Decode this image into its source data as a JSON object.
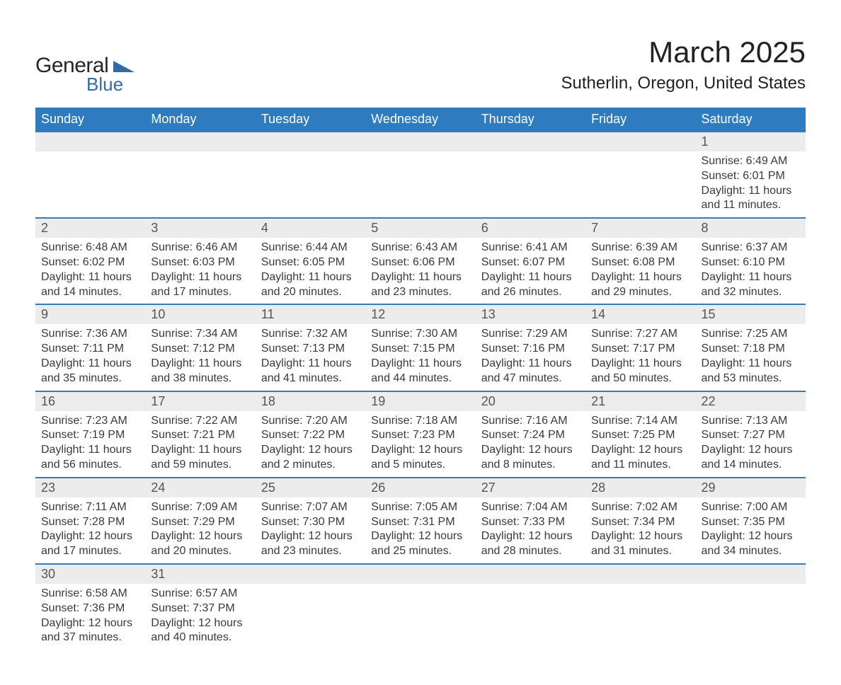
{
  "logo": {
    "text1": "General",
    "text2": "Blue",
    "shape_color": "#2f6da4"
  },
  "title": "March 2025",
  "subtitle": "Sutherlin, Oregon, United States",
  "header_bg": "#2f7bbf",
  "header_fg": "#ffffff",
  "daynum_bg": "#ececec",
  "rule_color": "#3a7ab5",
  "text_color": "#3a3a3a",
  "dow": [
    "Sunday",
    "Monday",
    "Tuesday",
    "Wednesday",
    "Thursday",
    "Friday",
    "Saturday"
  ],
  "weeks": [
    [
      null,
      null,
      null,
      null,
      null,
      null,
      {
        "n": "1",
        "sr": "Sunrise: 6:49 AM",
        "ss": "Sunset: 6:01 PM",
        "d1": "Daylight: 11 hours",
        "d2": "and 11 minutes."
      }
    ],
    [
      {
        "n": "2",
        "sr": "Sunrise: 6:48 AM",
        "ss": "Sunset: 6:02 PM",
        "d1": "Daylight: 11 hours",
        "d2": "and 14 minutes."
      },
      {
        "n": "3",
        "sr": "Sunrise: 6:46 AM",
        "ss": "Sunset: 6:03 PM",
        "d1": "Daylight: 11 hours",
        "d2": "and 17 minutes."
      },
      {
        "n": "4",
        "sr": "Sunrise: 6:44 AM",
        "ss": "Sunset: 6:05 PM",
        "d1": "Daylight: 11 hours",
        "d2": "and 20 minutes."
      },
      {
        "n": "5",
        "sr": "Sunrise: 6:43 AM",
        "ss": "Sunset: 6:06 PM",
        "d1": "Daylight: 11 hours",
        "d2": "and 23 minutes."
      },
      {
        "n": "6",
        "sr": "Sunrise: 6:41 AM",
        "ss": "Sunset: 6:07 PM",
        "d1": "Daylight: 11 hours",
        "d2": "and 26 minutes."
      },
      {
        "n": "7",
        "sr": "Sunrise: 6:39 AM",
        "ss": "Sunset: 6:08 PM",
        "d1": "Daylight: 11 hours",
        "d2": "and 29 minutes."
      },
      {
        "n": "8",
        "sr": "Sunrise: 6:37 AM",
        "ss": "Sunset: 6:10 PM",
        "d1": "Daylight: 11 hours",
        "d2": "and 32 minutes."
      }
    ],
    [
      {
        "n": "9",
        "sr": "Sunrise: 7:36 AM",
        "ss": "Sunset: 7:11 PM",
        "d1": "Daylight: 11 hours",
        "d2": "and 35 minutes."
      },
      {
        "n": "10",
        "sr": "Sunrise: 7:34 AM",
        "ss": "Sunset: 7:12 PM",
        "d1": "Daylight: 11 hours",
        "d2": "and 38 minutes."
      },
      {
        "n": "11",
        "sr": "Sunrise: 7:32 AM",
        "ss": "Sunset: 7:13 PM",
        "d1": "Daylight: 11 hours",
        "d2": "and 41 minutes."
      },
      {
        "n": "12",
        "sr": "Sunrise: 7:30 AM",
        "ss": "Sunset: 7:15 PM",
        "d1": "Daylight: 11 hours",
        "d2": "and 44 minutes."
      },
      {
        "n": "13",
        "sr": "Sunrise: 7:29 AM",
        "ss": "Sunset: 7:16 PM",
        "d1": "Daylight: 11 hours",
        "d2": "and 47 minutes."
      },
      {
        "n": "14",
        "sr": "Sunrise: 7:27 AM",
        "ss": "Sunset: 7:17 PM",
        "d1": "Daylight: 11 hours",
        "d2": "and 50 minutes."
      },
      {
        "n": "15",
        "sr": "Sunrise: 7:25 AM",
        "ss": "Sunset: 7:18 PM",
        "d1": "Daylight: 11 hours",
        "d2": "and 53 minutes."
      }
    ],
    [
      {
        "n": "16",
        "sr": "Sunrise: 7:23 AM",
        "ss": "Sunset: 7:19 PM",
        "d1": "Daylight: 11 hours",
        "d2": "and 56 minutes."
      },
      {
        "n": "17",
        "sr": "Sunrise: 7:22 AM",
        "ss": "Sunset: 7:21 PM",
        "d1": "Daylight: 11 hours",
        "d2": "and 59 minutes."
      },
      {
        "n": "18",
        "sr": "Sunrise: 7:20 AM",
        "ss": "Sunset: 7:22 PM",
        "d1": "Daylight: 12 hours",
        "d2": "and 2 minutes."
      },
      {
        "n": "19",
        "sr": "Sunrise: 7:18 AM",
        "ss": "Sunset: 7:23 PM",
        "d1": "Daylight: 12 hours",
        "d2": "and 5 minutes."
      },
      {
        "n": "20",
        "sr": "Sunrise: 7:16 AM",
        "ss": "Sunset: 7:24 PM",
        "d1": "Daylight: 12 hours",
        "d2": "and 8 minutes."
      },
      {
        "n": "21",
        "sr": "Sunrise: 7:14 AM",
        "ss": "Sunset: 7:25 PM",
        "d1": "Daylight: 12 hours",
        "d2": "and 11 minutes."
      },
      {
        "n": "22",
        "sr": "Sunrise: 7:13 AM",
        "ss": "Sunset: 7:27 PM",
        "d1": "Daylight: 12 hours",
        "d2": "and 14 minutes."
      }
    ],
    [
      {
        "n": "23",
        "sr": "Sunrise: 7:11 AM",
        "ss": "Sunset: 7:28 PM",
        "d1": "Daylight: 12 hours",
        "d2": "and 17 minutes."
      },
      {
        "n": "24",
        "sr": "Sunrise: 7:09 AM",
        "ss": "Sunset: 7:29 PM",
        "d1": "Daylight: 12 hours",
        "d2": "and 20 minutes."
      },
      {
        "n": "25",
        "sr": "Sunrise: 7:07 AM",
        "ss": "Sunset: 7:30 PM",
        "d1": "Daylight: 12 hours",
        "d2": "and 23 minutes."
      },
      {
        "n": "26",
        "sr": "Sunrise: 7:05 AM",
        "ss": "Sunset: 7:31 PM",
        "d1": "Daylight: 12 hours",
        "d2": "and 25 minutes."
      },
      {
        "n": "27",
        "sr": "Sunrise: 7:04 AM",
        "ss": "Sunset: 7:33 PM",
        "d1": "Daylight: 12 hours",
        "d2": "and 28 minutes."
      },
      {
        "n": "28",
        "sr": "Sunrise: 7:02 AM",
        "ss": "Sunset: 7:34 PM",
        "d1": "Daylight: 12 hours",
        "d2": "and 31 minutes."
      },
      {
        "n": "29",
        "sr": "Sunrise: 7:00 AM",
        "ss": "Sunset: 7:35 PM",
        "d1": "Daylight: 12 hours",
        "d2": "and 34 minutes."
      }
    ],
    [
      {
        "n": "30",
        "sr": "Sunrise: 6:58 AM",
        "ss": "Sunset: 7:36 PM",
        "d1": "Daylight: 12 hours",
        "d2": "and 37 minutes."
      },
      {
        "n": "31",
        "sr": "Sunrise: 6:57 AM",
        "ss": "Sunset: 7:37 PM",
        "d1": "Daylight: 12 hours",
        "d2": "and 40 minutes."
      },
      null,
      null,
      null,
      null,
      null
    ]
  ]
}
